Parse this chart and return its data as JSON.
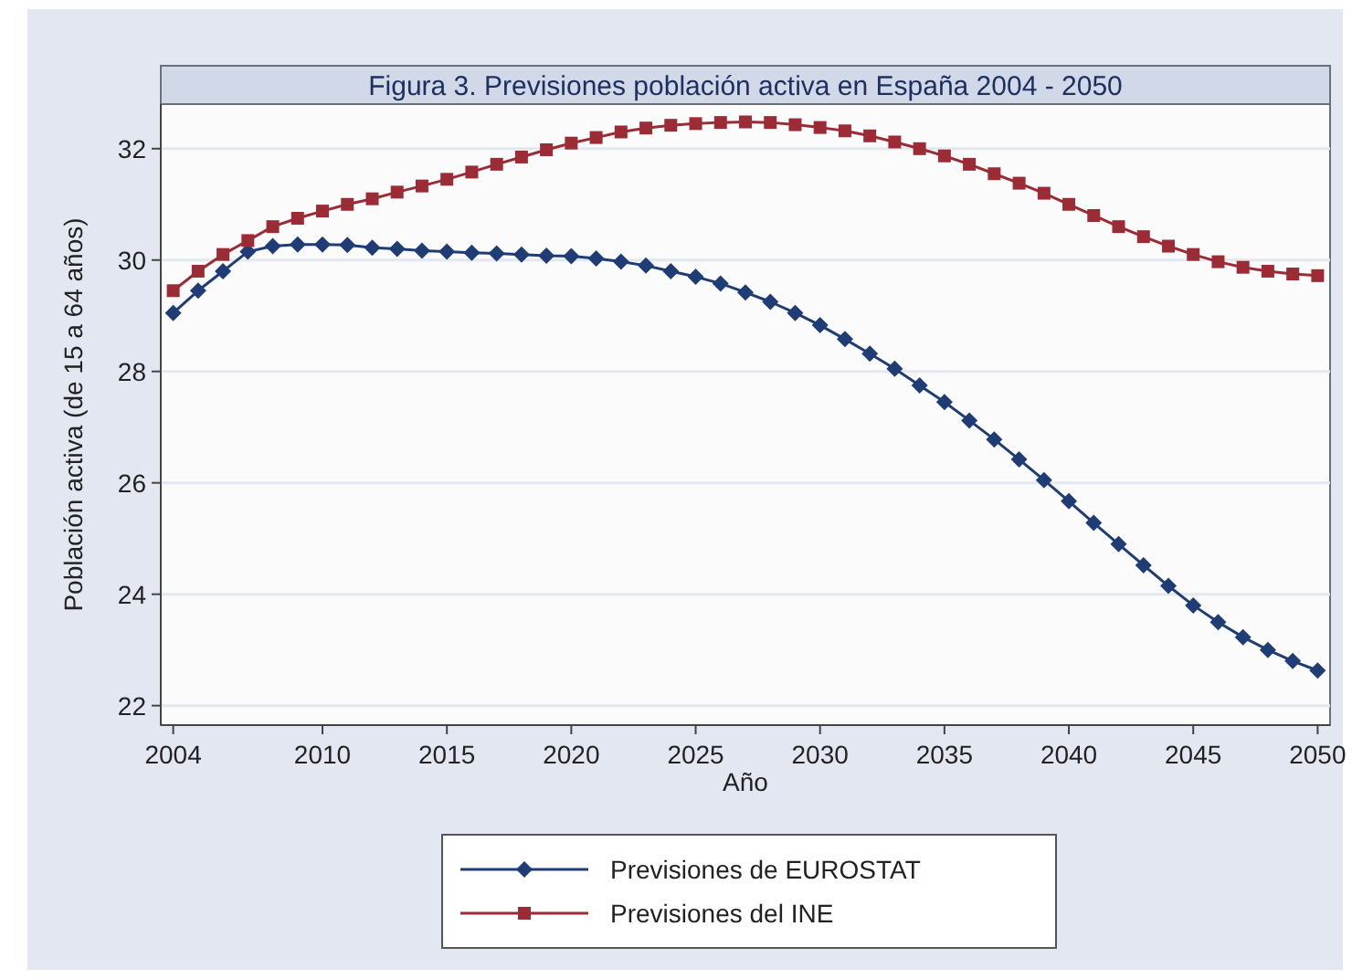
{
  "chart_data": {
    "type": "line",
    "title": "Figura 3. Previsiones población activa en España 2004 - 2050",
    "xlabel": "Año",
    "ylabel": "Población activa (de 15 a 64 años)",
    "x": [
      2004,
      2005,
      2006,
      2007,
      2008,
      2009,
      2010,
      2011,
      2012,
      2013,
      2014,
      2015,
      2016,
      2017,
      2018,
      2019,
      2020,
      2021,
      2022,
      2023,
      2024,
      2025,
      2026,
      2027,
      2028,
      2029,
      2030,
      2031,
      2032,
      2033,
      2034,
      2035,
      2036,
      2037,
      2038,
      2039,
      2040,
      2041,
      2042,
      2043,
      2044,
      2045,
      2046,
      2047,
      2048,
      2049,
      2050
    ],
    "series": [
      {
        "name": "Previsiones de EUROSTAT",
        "color": "#1f3d74",
        "marker": "diamond",
        "values": [
          29.05,
          29.45,
          29.8,
          30.15,
          30.25,
          30.28,
          30.28,
          30.27,
          30.22,
          30.2,
          30.17,
          30.15,
          30.13,
          30.12,
          30.1,
          30.08,
          30.07,
          30.03,
          29.97,
          29.9,
          29.8,
          29.7,
          29.58,
          29.42,
          29.25,
          29.05,
          28.83,
          28.58,
          28.32,
          28.05,
          27.75,
          27.45,
          27.12,
          26.78,
          26.42,
          26.05,
          25.67,
          25.28,
          24.9,
          24.52,
          24.15,
          23.8,
          23.5,
          23.23,
          23.0,
          22.8,
          22.63
        ]
      },
      {
        "name": "Previsiones del INE",
        "color": "#9b2b35",
        "marker": "square",
        "values": [
          29.45,
          29.8,
          30.1,
          30.35,
          30.6,
          30.75,
          30.88,
          31.0,
          31.1,
          31.22,
          31.33,
          31.45,
          31.58,
          31.72,
          31.85,
          31.98,
          32.1,
          32.2,
          32.3,
          32.37,
          32.42,
          32.45,
          32.47,
          32.48,
          32.47,
          32.43,
          32.38,
          32.32,
          32.23,
          32.12,
          32.0,
          31.87,
          31.72,
          31.55,
          31.38,
          31.2,
          31.0,
          30.8,
          30.6,
          30.42,
          30.25,
          30.1,
          29.97,
          29.87,
          29.8,
          29.75,
          29.72
        ]
      }
    ],
    "xlim": [
      2003.5,
      2050.5
    ],
    "xticks": [
      2004,
      2010,
      2015,
      2020,
      2025,
      2030,
      2035,
      2040,
      2045,
      2050
    ],
    "ylim": [
      21.65,
      32.8
    ],
    "yticks": [
      22,
      24,
      26,
      28,
      30,
      32
    ],
    "grid": "y",
    "legend": "bottom",
    "line_style": "solid"
  }
}
